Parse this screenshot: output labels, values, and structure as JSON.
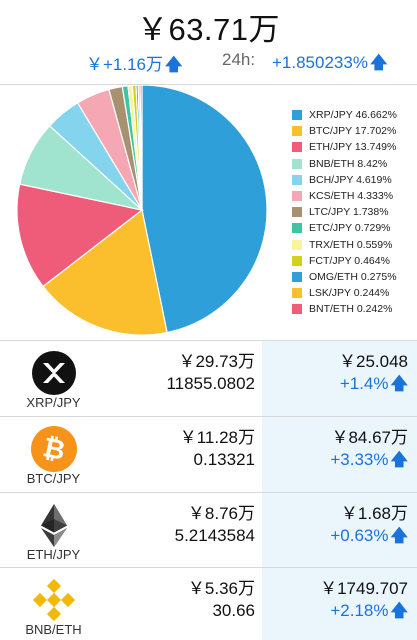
{
  "header": {
    "total_value": "￥63.71万",
    "delta_value": "￥+1.16万",
    "period_label": "24h:",
    "period_change": "+1.850233%",
    "up_arrow": "🡅"
  },
  "colors": {
    "accent_blue": "#1a73d9",
    "price_bg": "#ebf5fc"
  },
  "chart_data": {
    "type": "pie",
    "slices": [
      {
        "label": "XRP/JPY",
        "value": 46.662,
        "color": "#2e9fd8"
      },
      {
        "label": "BTC/JPY",
        "value": 17.702,
        "color": "#fbbf2e"
      },
      {
        "label": "ETH/JPY",
        "value": 13.749,
        "color": "#ee5c7a"
      },
      {
        "label": "BNB/ETH",
        "value": 8.42,
        "color": "#a0e3cf"
      },
      {
        "label": "BCH/JPY",
        "value": 4.619,
        "color": "#85d4ee"
      },
      {
        "label": "KCS/ETH",
        "value": 4.333,
        "color": "#f6a7b4"
      },
      {
        "label": "LTC/JPY",
        "value": 1.738,
        "color": "#a79270"
      },
      {
        "label": "ETC/JPY",
        "value": 0.729,
        "color": "#3dc5a3"
      },
      {
        "label": "TRX/ETH",
        "value": 0.559,
        "color": "#faf49b"
      },
      {
        "label": "FCT/JPY",
        "value": 0.464,
        "color": "#d4d11c"
      },
      {
        "label": "OMG/ETH",
        "value": 0.275,
        "color": "#2e9fd8"
      },
      {
        "label": "LSK/JPY",
        "value": 0.244,
        "color": "#fbbf2e"
      },
      {
        "label": "BNT/ETH",
        "value": 0.242,
        "color": "#ee5c7a"
      }
    ],
    "legend_texts": [
      "XRP/JPY 46.662%",
      "BTC/JPY 17.702%",
      "ETH/JPY 13.749%",
      "BNB/ETH 8.42%",
      "BCH/JPY 4.619%",
      "KCS/ETH 4.333%",
      "LTC/JPY 1.738%",
      "ETC/JPY 0.729%",
      "TRX/ETH 0.559%",
      "FCT/JPY 0.464%",
      "OMG/ETH 0.275%",
      "LSK/JPY 0.244%",
      "BNT/ETH 0.242%"
    ],
    "legend_position": "right"
  },
  "assets": [
    {
      "pair": "XRP/JPY",
      "value": "￥29.73万",
      "holding": "11855.0802",
      "price": "￥25.048",
      "change": "+1.4%",
      "icon": "xrp-icon"
    },
    {
      "pair": "BTC/JPY",
      "value": "￥11.28万",
      "holding": "0.13321",
      "price": "￥84.67万",
      "change": "+3.33%",
      "icon": "bitcoin-icon"
    },
    {
      "pair": "ETH/JPY",
      "value": "￥8.76万",
      "holding": "5.2143584",
      "price": "￥1.68万",
      "change": "+0.63%",
      "icon": "ethereum-icon"
    },
    {
      "pair": "BNB/ETH",
      "value": "￥5.36万",
      "holding": "30.66",
      "price": "￥1749.707",
      "change": "+2.18%",
      "icon": "binance-icon"
    }
  ]
}
